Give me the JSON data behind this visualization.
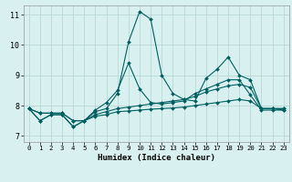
{
  "xlabel": "Humidex (Indice chaleur)",
  "bg_color": "#d8f0f0",
  "grid_color": "#b8d8d8",
  "line_color": "#006060",
  "xlim": [
    -0.5,
    23.5
  ],
  "ylim": [
    6.8,
    11.3
  ],
  "xticks": [
    0,
    1,
    2,
    3,
    4,
    5,
    6,
    7,
    8,
    9,
    10,
    11,
    12,
    13,
    14,
    15,
    16,
    17,
    18,
    19,
    20,
    21,
    22,
    23
  ],
  "yticks": [
    7,
    8,
    9,
    10,
    11
  ],
  "series": [
    [
      7.9,
      7.5,
      7.7,
      7.7,
      7.3,
      7.5,
      7.8,
      7.9,
      8.4,
      10.1,
      11.1,
      10.85,
      9.0,
      8.4,
      8.2,
      8.15,
      8.9,
      9.2,
      9.6,
      9.0,
      8.85,
      7.9,
      7.9,
      7.85
    ],
    [
      7.9,
      7.5,
      7.7,
      7.7,
      7.3,
      7.5,
      7.85,
      8.1,
      8.5,
      9.4,
      8.55,
      8.1,
      8.05,
      8.1,
      8.15,
      8.4,
      8.55,
      8.7,
      8.85,
      8.85,
      8.35,
      7.85,
      7.85,
      7.85
    ],
    [
      7.9,
      7.75,
      7.75,
      7.75,
      7.5,
      7.5,
      7.7,
      7.8,
      7.9,
      7.95,
      8.0,
      8.05,
      8.1,
      8.15,
      8.2,
      8.3,
      8.45,
      8.55,
      8.65,
      8.7,
      8.6,
      7.9,
      7.9,
      7.9
    ],
    [
      7.9,
      7.75,
      7.75,
      7.75,
      7.5,
      7.5,
      7.65,
      7.7,
      7.8,
      7.82,
      7.85,
      7.88,
      7.9,
      7.92,
      7.95,
      8.0,
      8.05,
      8.1,
      8.15,
      8.2,
      8.15,
      7.9,
      7.9,
      7.9
    ]
  ]
}
